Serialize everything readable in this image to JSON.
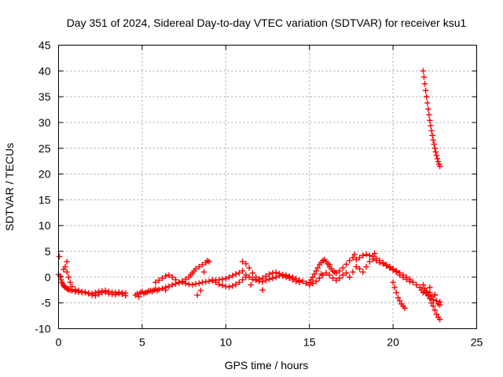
{
  "chart_data": {
    "type": "scatter",
    "title": "Day 351 of 2024, Sidereal Day-to-day VTEC variation (SDTVAR) for receiver ksu1",
    "xlabel": "GPS time / hours",
    "ylabel": "SDTVAR / TECUs",
    "xlim": [
      0,
      25
    ],
    "ylim": [
      -10,
      45
    ],
    "xticks": [
      0,
      5,
      10,
      15,
      20,
      25
    ],
    "yticks": [
      -10,
      -5,
      0,
      5,
      10,
      15,
      20,
      25,
      30,
      35,
      40,
      45
    ],
    "grid": true,
    "marker": "+",
    "series": [
      {
        "name": "SDTVAR",
        "color": "#ff0000",
        "x": [
          0.0,
          0.1,
          0.15,
          0.2,
          0.25,
          0.3,
          0.35,
          0.4,
          0.5,
          0.55,
          0.6,
          0.7,
          0.8,
          1.0,
          1.2,
          1.4,
          1.6,
          1.8,
          2.0,
          2.2,
          2.4,
          2.6,
          2.8,
          3.0,
          3.2,
          3.4,
          3.6,
          3.8,
          4.0,
          0.3,
          0.4,
          0.5,
          0.6,
          0.7,
          0.8,
          1.0,
          1.2,
          1.4,
          1.6,
          1.8,
          2.0,
          2.2,
          2.4,
          2.6,
          2.8,
          3.0,
          3.2,
          3.4,
          3.6,
          3.8,
          4.0,
          0.05,
          0.5,
          4.6,
          4.7,
          4.8,
          4.9,
          5.0,
          5.1,
          5.2,
          5.3,
          5.4,
          5.5,
          5.6,
          5.7,
          5.8,
          5.9,
          6.0,
          6.2,
          6.4,
          6.6,
          6.8,
          7.0,
          7.2,
          7.4,
          7.6,
          7.8,
          8.0,
          8.2,
          8.4,
          8.6,
          8.8,
          9.0,
          9.2,
          9.4,
          9.6,
          9.8,
          10.0,
          10.2,
          10.4,
          10.6,
          10.8,
          11.0,
          5.8,
          6.0,
          6.2,
          6.4,
          6.6,
          6.8,
          7.0,
          7.2,
          7.4,
          7.6,
          7.8,
          7.9,
          8.0,
          8.1,
          8.2,
          8.4,
          8.6,
          8.8,
          9.0,
          9.2,
          9.4,
          9.6,
          9.8,
          10.0,
          10.2,
          10.4,
          10.6,
          10.8,
          11.0,
          11.2,
          6.4,
          8.3,
          8.5,
          8.7,
          8.9,
          11.0,
          11.2,
          11.4,
          11.6,
          11.8,
          12.0,
          12.2,
          12.4,
          12.6,
          12.8,
          13.0,
          13.2,
          13.4,
          13.6,
          13.8,
          14.0,
          14.2,
          14.4,
          11.2,
          11.4,
          11.6,
          11.8,
          12.0,
          12.2,
          12.4,
          12.6,
          12.8,
          13.0,
          13.2,
          13.4,
          13.6,
          13.8,
          14.0,
          14.2,
          14.4,
          11.5,
          12.2,
          14.6,
          14.8,
          15.0,
          15.0,
          15.1,
          15.2,
          15.3,
          15.4,
          15.5,
          15.6,
          15.7,
          15.8,
          15.9,
          16.0,
          16.1,
          16.2,
          16.3,
          16.4,
          16.5,
          16.6,
          16.8,
          17.0,
          17.2,
          17.4,
          17.6,
          17.8,
          18.0,
          18.2,
          18.4,
          18.6,
          18.8,
          19.0,
          19.2,
          19.4,
          19.6,
          19.8,
          20.0,
          20.2,
          20.4,
          20.6,
          20.8,
          21.0,
          15.0,
          15.2,
          15.4,
          15.6,
          15.8,
          16.0,
          16.2,
          16.4,
          16.6,
          16.8,
          17.0,
          17.2,
          17.4,
          17.6,
          17.8,
          18.0,
          18.2,
          18.4,
          18.6,
          18.8,
          19.0,
          19.2,
          19.4,
          19.6,
          19.8,
          20.0,
          20.2,
          20.4,
          20.6,
          20.8,
          21.0,
          15.7,
          16.2,
          17.7,
          18.9,
          20.0,
          20.1,
          20.2,
          20.3,
          20.4,
          20.5,
          20.6,
          20.7,
          21.2,
          21.4,
          21.6,
          21.7,
          21.8,
          21.9,
          22.0,
          22.1,
          22.2,
          22.3,
          22.4,
          22.5,
          22.6,
          22.7,
          22.8,
          21.8,
          21.9,
          22.0,
          22.1,
          22.2,
          22.3,
          22.4,
          22.5,
          22.6,
          22.7,
          22.8,
          22.2,
          22.5,
          22.8,
          21.8,
          21.85,
          21.9,
          21.95,
          22.0,
          22.05,
          22.1,
          22.15,
          22.2,
          22.25,
          22.3,
          22.35,
          22.4,
          22.45,
          22.5,
          22.55,
          22.6,
          22.65,
          22.7,
          22.75,
          22.8
        ],
        "y": [
          0.5,
          0.2,
          -0.5,
          -1.0,
          -1.3,
          -1.6,
          -1.8,
          -2.0,
          -2.2,
          -2.3,
          -2.4,
          -2.5,
          -2.6,
          -2.8,
          -2.9,
          -3.0,
          -3.0,
          -3.1,
          -3.2,
          -3.0,
          -2.8,
          -2.7,
          -2.6,
          -2.8,
          -2.9,
          -3.0,
          -2.9,
          -3.0,
          -3.1,
          1.5,
          2.0,
          1.0,
          0.0,
          -1.0,
          -1.8,
          -2.4,
          -2.6,
          -2.8,
          -2.9,
          -3.2,
          -3.5,
          -3.6,
          -3.3,
          -3.0,
          -2.9,
          -3.2,
          -3.3,
          -3.4,
          -3.2,
          -3.3,
          -3.6,
          4.0,
          3.0,
          -3.5,
          -3.2,
          -3.8,
          -3.0,
          -2.8,
          -3.2,
          -3.0,
          -2.9,
          -2.7,
          -2.6,
          -2.8,
          -2.5,
          -2.3,
          -2.6,
          -2.4,
          -2.2,
          -2.0,
          -1.8,
          -1.5,
          -1.3,
          -1.1,
          -1.0,
          -1.2,
          -1.4,
          -1.5,
          -1.3,
          -1.2,
          -1.0,
          -0.9,
          -0.8,
          -0.7,
          -0.6,
          -0.5,
          -0.4,
          -0.3,
          0.0,
          0.3,
          0.6,
          0.8,
          1.2,
          -1.0,
          -0.6,
          -0.2,
          0.2,
          0.4,
          0.0,
          -0.5,
          -1.0,
          -0.8,
          -0.4,
          0.0,
          0.4,
          0.8,
          1.2,
          1.6,
          2.0,
          2.4,
          2.8,
          3.0,
          -0.5,
          -1.0,
          -1.4,
          -1.6,
          -1.8,
          -1.9,
          -1.7,
          -1.4,
          -1.0,
          -0.5,
          0.0,
          -2.5,
          -3.5,
          -2.6,
          1.0,
          3.2,
          3.0,
          2.6,
          1.8,
          0.8,
          0.0,
          -0.4,
          -0.2,
          0.2,
          0.6,
          0.8,
          0.9,
          0.7,
          0.5,
          0.4,
          0.2,
          0.0,
          -0.3,
          -0.6,
          0.4,
          0.0,
          -0.4,
          -0.6,
          -0.8,
          -0.9,
          -0.6,
          -0.4,
          -0.2,
          0.0,
          0.3,
          0.2,
          0.0,
          -0.2,
          -0.5,
          -0.8,
          -1.0,
          -1.5,
          -2.5,
          -0.8,
          -1.2,
          -1.5,
          -1.0,
          -0.5,
          0.0,
          0.6,
          1.2,
          1.8,
          2.4,
          2.8,
          3.2,
          3.4,
          3.0,
          2.6,
          2.0,
          1.6,
          1.2,
          1.0,
          0.8,
          1.2,
          1.8,
          2.5,
          3.2,
          3.8,
          3.4,
          3.8,
          4.2,
          4.4,
          4.2,
          4.0,
          3.6,
          3.2,
          2.8,
          2.4,
          2.0,
          1.6,
          1.2,
          0.8,
          0.4,
          0.0,
          -0.4,
          -1.5,
          -1.2,
          -0.8,
          -0.2,
          0.4,
          0.8,
          0.4,
          -0.2,
          -0.6,
          -0.2,
          0.4,
          0.8,
          0.0,
          1.0,
          2.0,
          1.6,
          1.0,
          2.0,
          3.0,
          3.5,
          3.2,
          2.8,
          2.6,
          2.2,
          1.8,
          1.4,
          1.0,
          0.4,
          0.0,
          -0.4,
          -0.8,
          0.6,
          2.4,
          4.4,
          4.6,
          -1.0,
          -2.0,
          -3.0,
          -4.0,
          -4.6,
          -5.2,
          -5.6,
          -6.0,
          -1.0,
          -1.5,
          -2.0,
          -2.5,
          -3.0,
          -2.6,
          -3.2,
          -3.6,
          -3.0,
          -3.8,
          -4.4,
          -3.4,
          -4.6,
          -5.2,
          -4.8,
          -1.5,
          -2.2,
          -2.8,
          -3.5,
          -4.2,
          -5.0,
          -5.6,
          -6.4,
          -7.2,
          -7.8,
          -8.2,
          -2.0,
          -3.5,
          -5.4,
          40.0,
          38.8,
          37.5,
          36.2,
          35.0,
          33.8,
          32.6,
          31.5,
          30.4,
          29.4,
          28.4,
          27.5,
          26.6,
          25.8,
          25.0,
          24.3,
          23.6,
          23.0,
          22.4,
          21.9,
          21.5
        ]
      }
    ]
  }
}
